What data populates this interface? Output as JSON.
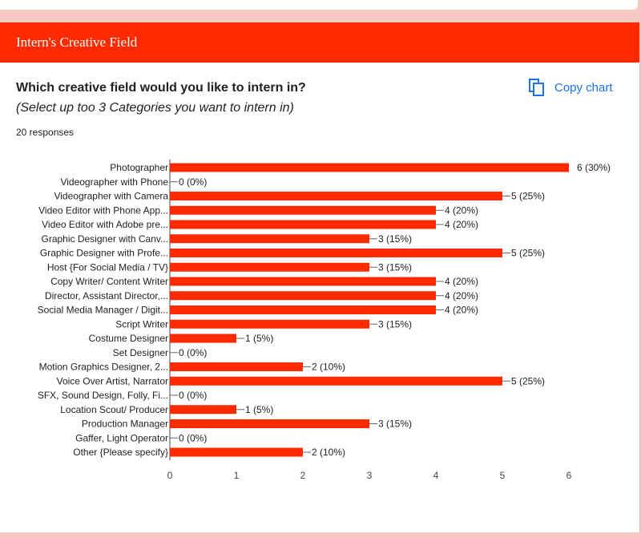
{
  "header": {
    "title": "Intern's Creative Field"
  },
  "question": {
    "title": "Which creative field would you like to intern in?",
    "subtitle": "(Select up too 3 Categories you want to intern in)",
    "responses": "20 responses"
  },
  "actions": {
    "copy_chart_label": "Copy chart",
    "copy_icon": "copy-icon"
  },
  "colors": {
    "header": "#ff2a00",
    "bar": "#ff2a00",
    "link": "#1a73e8"
  },
  "chart_data": {
    "type": "bar",
    "orientation": "horizontal",
    "categories": [
      "Photographer",
      "Videographer with Phone",
      "Videographer with Camera",
      "Video Editor with Phone App...",
      "Video Editor with Adobe pre...",
      "Graphic Designer with Canv...",
      "Graphic Designer with Profe...",
      "Host {For Social Media / TV}",
      "Copy Writer/ Content Writer",
      "Director, Assistant Director,...",
      "Social Media Manager / Digit...",
      "Script Writer",
      "Costume Designer",
      "Set Designer",
      "Motion Graphics Designer, 2...",
      "Voice Over Artist, Narrator",
      "SFX, Sound Design, Folly, Fi...",
      "Location Scout/ Producer",
      "Production Manager",
      "Gaffer, Light Operator",
      "Other {Please specify}"
    ],
    "values": [
      6,
      0,
      5,
      4,
      4,
      3,
      5,
      3,
      4,
      4,
      4,
      3,
      1,
      0,
      2,
      5,
      0,
      1,
      3,
      0,
      2
    ],
    "data_labels": [
      "6 (30%)",
      "0 (0%)",
      "5 (25%)",
      "4 (20%)",
      "4 (20%)",
      "3 (15%)",
      "5 (25%)",
      "3 (15%)",
      "4 (20%)",
      "4 (20%)",
      "4 (20%)",
      "3 (15%)",
      "1 (5%)",
      "0 (0%)",
      "2 (10%)",
      "5 (25%)",
      "0 (0%)",
      "1 (5%)",
      "3 (15%)",
      "0 (0%)",
      "2 (10%)"
    ],
    "x_ticks": [
      0,
      1,
      2,
      3,
      4,
      5,
      6
    ],
    "xlim": [
      0,
      6
    ],
    "grid": false,
    "legend": "none"
  }
}
